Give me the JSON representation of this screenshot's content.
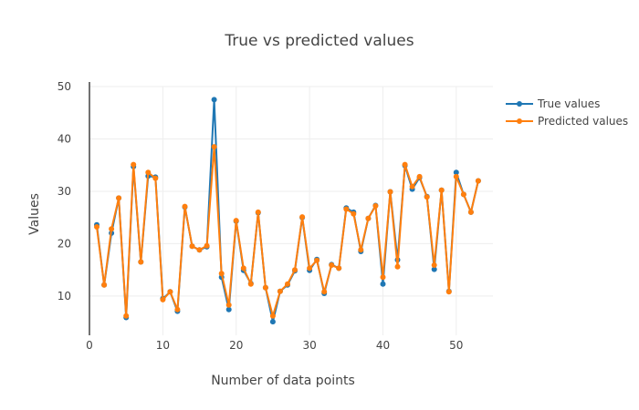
{
  "chart_data": {
    "type": "line",
    "title": "True vs predicted values",
    "xlabel": "Number of data points",
    "ylabel": "Values",
    "xlim": [
      0,
      55
    ],
    "ylim": [
      2.5,
      50
    ],
    "xticks": [
      0,
      10,
      20,
      30,
      40,
      50
    ],
    "yticks": [
      10,
      20,
      30,
      40,
      50
    ],
    "grid": true,
    "legend_position": "top-right",
    "x": [
      1,
      2,
      3,
      4,
      5,
      6,
      7,
      8,
      9,
      10,
      11,
      12,
      13,
      14,
      15,
      16,
      17,
      18,
      19,
      20,
      21,
      22,
      23,
      24,
      25,
      26,
      27,
      28,
      29,
      30,
      31,
      32,
      33,
      34,
      35,
      36,
      37,
      38,
      39,
      40,
      41,
      42,
      43,
      44,
      45,
      46,
      47,
      48,
      49,
      50,
      51,
      52,
      53
    ],
    "series": [
      {
        "name": "True values",
        "color": "#1f77b4",
        "values": [
          23.6,
          12.1,
          22.0,
          28.7,
          5.9,
          34.7,
          16.5,
          32.9,
          32.7,
          9.5,
          10.8,
          7.1,
          27.0,
          19.5,
          18.8,
          19.4,
          47.5,
          13.6,
          7.4,
          24.3,
          14.9,
          12.4,
          25.9,
          11.6,
          5.1,
          10.9,
          12.1,
          14.8,
          25.0,
          14.9,
          17.0,
          10.5,
          16.0,
          15.3,
          26.8,
          26.0,
          18.5,
          24.8,
          27.3,
          12.3,
          29.9,
          16.9,
          34.9,
          30.4,
          32.6,
          29.0,
          15.1,
          30.2,
          10.9,
          33.6,
          29.4,
          26.0,
          32.0
        ]
      },
      {
        "name": "Predicted values",
        "color": "#ff7f0e",
        "values": [
          23.2,
          12.1,
          22.8,
          28.7,
          6.2,
          35.1,
          16.5,
          33.6,
          32.5,
          9.3,
          10.8,
          7.4,
          27.1,
          19.5,
          18.8,
          19.6,
          38.5,
          14.3,
          8.3,
          24.4,
          15.3,
          12.3,
          26.0,
          11.6,
          6.2,
          10.9,
          12.3,
          15.0,
          25.1,
          15.3,
          16.8,
          10.8,
          15.9,
          15.3,
          26.6,
          25.7,
          18.8,
          24.8,
          27.2,
          13.6,
          29.9,
          15.6,
          35.1,
          30.9,
          32.8,
          28.9,
          15.9,
          30.2,
          10.8,
          32.8,
          29.4,
          26.0,
          32.0
        ]
      }
    ]
  }
}
